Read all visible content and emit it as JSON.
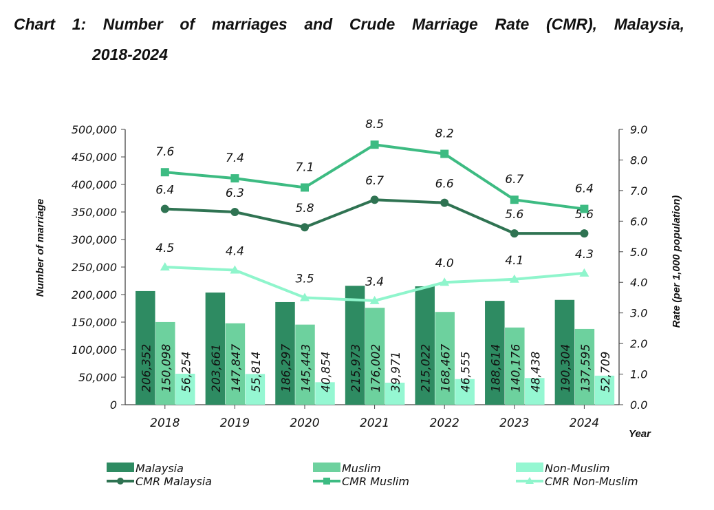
{
  "title_line1": "Chart 1: Number of marriages and Crude Marriage Rate (CMR), Malaysia,",
  "title_line2": "2018-2024",
  "chart_data": {
    "type": "bar+line",
    "categories": [
      "2018",
      "2019",
      "2020",
      "2021",
      "2022",
      "2023",
      "2024"
    ],
    "xlabel": "Year",
    "ylabel": "Number of marriage",
    "ylabel_right": "Rate (per 1,000 population)",
    "ylim": [
      0,
      500000
    ],
    "ylim_right": [
      0,
      9
    ],
    "yticks": [
      "0",
      "50,000",
      "100,000",
      "150,000",
      "200,000",
      "250,000",
      "300,000",
      "350,000",
      "400,000",
      "450,000",
      "500,000"
    ],
    "yticks_right": [
      "0.0",
      "1.0",
      "2.0",
      "3.0",
      "4.0",
      "5.0",
      "6.0",
      "7.0",
      "8.0",
      "9.0"
    ],
    "bar_series": [
      {
        "name": "Malaysia",
        "color": "#2e8b62",
        "values": [
          206352,
          203661,
          186297,
          215973,
          215022,
          188614,
          190304
        ],
        "labels": [
          "206,352",
          "203,661",
          "186,297",
          "215,973",
          "215,022",
          "188,614",
          "190,304"
        ]
      },
      {
        "name": "Muslim",
        "color": "#6dd19e",
        "values": [
          150098,
          147847,
          145443,
          176002,
          168467,
          140176,
          137595
        ],
        "labels": [
          "150,098",
          "147,847",
          "145,443",
          "176,002",
          "168,467",
          "140,176",
          "137,595"
        ]
      },
      {
        "name": "Non-Muslim",
        "color": "#95f7d2",
        "values": [
          56254,
          55814,
          40854,
          39971,
          46555,
          48438,
          52709
        ],
        "labels": [
          "56,254",
          "55,814",
          "40,854",
          "39,971",
          "46,555",
          "48,438",
          "52,709"
        ]
      }
    ],
    "line_series": [
      {
        "name": "CMR Malaysia",
        "color": "#2f7352",
        "marker": "circle",
        "values": [
          6.4,
          6.3,
          5.8,
          6.7,
          6.6,
          5.6,
          5.6
        ],
        "labels": [
          "6.4",
          "6.3",
          "5.8",
          "6.7",
          "6.6",
          "5.6",
          "5.6"
        ]
      },
      {
        "name": "CMR Muslim",
        "color": "#3dbb82",
        "marker": "square",
        "values": [
          7.6,
          7.4,
          7.1,
          8.5,
          8.2,
          6.7,
          6.4
        ],
        "labels": [
          "7.6",
          "7.4",
          "7.1",
          "8.5",
          "8.2",
          "6.7",
          "6.4"
        ]
      },
      {
        "name": "CMR Non-Muslim",
        "color": "#8ff5cc",
        "marker": "triangle",
        "values": [
          4.5,
          4.4,
          3.5,
          3.4,
          4.0,
          4.1,
          4.3
        ],
        "labels": [
          "4.5",
          "4.4",
          "3.5",
          "3.4",
          "4.0",
          "4.1",
          "4.3"
        ]
      }
    ],
    "legend_position": "bottom"
  }
}
